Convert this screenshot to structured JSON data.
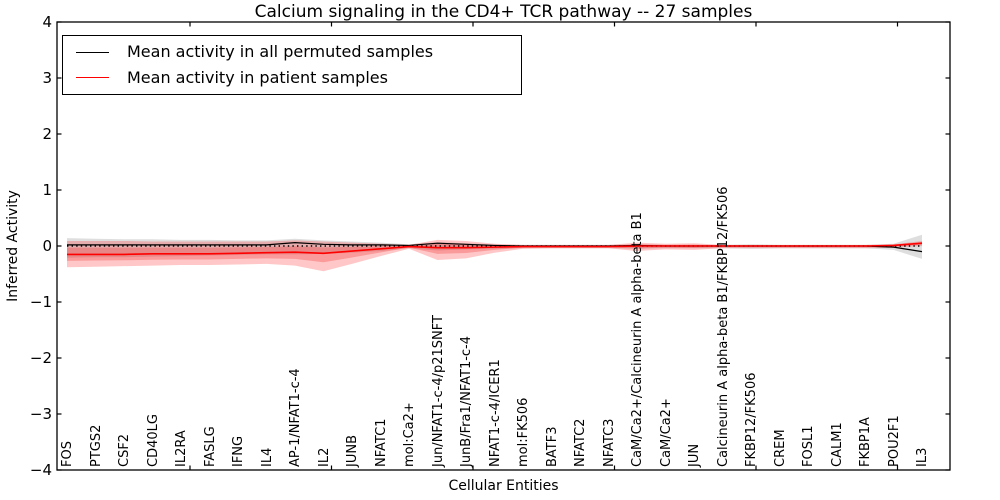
{
  "chart_data": {
    "type": "line",
    "title": "Calcium signaling in the CD4+ TCR pathway -- 27 samples",
    "xlabel": "Cellular Entities",
    "ylabel": "Inferred Activity",
    "ylim": [
      -4,
      4
    ],
    "yticks": [
      4,
      3,
      2,
      1,
      0,
      -1,
      -2,
      -3,
      -4
    ],
    "grid": false,
    "legend_position": "upper left",
    "zero_reference_line": true,
    "categories": [
      "FOS",
      "PTGS2",
      "CSF2",
      "CD40LG",
      "IL2RA",
      "FASLG",
      "IFNG",
      "IL4",
      "AP-1/NFAT1-c-4",
      "IL2",
      "JUNB",
      "NFATC1",
      "mol:Ca2+",
      "Jun/NFAT1-c-4/p21SNFT",
      "JunB/Fra1/NFAT1-c-4",
      "NFAT1-c-4/ICER1",
      "mol:FK506",
      "BATF3",
      "NFATC2",
      "NFATC3",
      "CaM/Ca2+/Calcineurin A alpha-beta B1",
      "CaM/Ca2+",
      "JUN",
      "Calcineurin A alpha-beta B1/FKBP12/FK506",
      "FKBP12/FK506",
      "CREM",
      "FOSL1",
      "CALM1",
      "FKBP1A",
      "POU2F1",
      "IL3"
    ],
    "series": [
      {
        "name": "Mean activity in all permuted samples",
        "color": "#000000",
        "values": [
          0.02,
          0.02,
          0.02,
          0.02,
          0.02,
          0.02,
          0.02,
          0.02,
          0.06,
          0.03,
          0.02,
          0.02,
          0.01,
          0.05,
          0.03,
          0.01,
          0.0,
          0.0,
          0.0,
          0.0,
          0.01,
          0.0,
          0.0,
          0.0,
          0.0,
          0.0,
          0.0,
          0.0,
          0.0,
          -0.02,
          -0.1
        ]
      },
      {
        "name": "Mean activity in patient samples",
        "color": "#ff0000",
        "values": [
          -0.15,
          -0.15,
          -0.15,
          -0.14,
          -0.14,
          -0.14,
          -0.13,
          -0.12,
          -0.11,
          -0.13,
          -0.09,
          -0.05,
          -0.01,
          -0.03,
          -0.03,
          -0.02,
          -0.01,
          -0.01,
          -0.01,
          -0.01,
          0.0,
          0.0,
          0.0,
          0.0,
          0.0,
          0.0,
          0.0,
          0.0,
          0.0,
          0.01,
          0.05
        ]
      }
    ],
    "bands": [
      {
        "name": "permuted-samples-range",
        "color": "#000000",
        "opacity": 0.13,
        "top": [
          0.14,
          0.13,
          0.12,
          0.12,
          0.11,
          0.11,
          0.1,
          0.1,
          0.13,
          0.1,
          0.08,
          0.06,
          0.03,
          0.07,
          0.05,
          0.03,
          0.02,
          0.02,
          0.02,
          0.02,
          0.03,
          0.02,
          0.02,
          0.02,
          0.03,
          0.02,
          0.02,
          0.02,
          0.02,
          0.04,
          0.2
        ],
        "bottom": [
          -0.21,
          -0.2,
          -0.2,
          -0.19,
          -0.18,
          -0.17,
          -0.16,
          -0.15,
          -0.15,
          -0.14,
          -0.12,
          -0.09,
          -0.04,
          -0.08,
          -0.06,
          -0.05,
          -0.04,
          -0.04,
          -0.04,
          -0.04,
          -0.05,
          -0.04,
          -0.04,
          -0.04,
          -0.05,
          -0.04,
          -0.04,
          -0.04,
          -0.04,
          -0.07,
          -0.23
        ]
      },
      {
        "name": "patient-samples-range",
        "color": "#ff0000",
        "opacity": 0.22,
        "top": [
          0.09,
          0.09,
          0.09,
          0.08,
          0.08,
          0.08,
          0.08,
          0.08,
          0.1,
          0.08,
          0.06,
          0.04,
          0.02,
          0.11,
          0.09,
          0.04,
          0.02,
          0.02,
          0.02,
          0.02,
          0.06,
          0.04,
          0.05,
          0.02,
          0.02,
          0.02,
          0.02,
          0.02,
          0.02,
          0.03,
          0.09
        ],
        "bottom": [
          -0.38,
          -0.37,
          -0.36,
          -0.35,
          -0.34,
          -0.34,
          -0.33,
          -0.32,
          -0.35,
          -0.45,
          -0.32,
          -0.18,
          -0.05,
          -0.25,
          -0.22,
          -0.12,
          -0.05,
          -0.04,
          -0.04,
          -0.04,
          -0.09,
          -0.06,
          -0.07,
          -0.04,
          -0.04,
          -0.04,
          -0.04,
          -0.04,
          -0.04,
          -0.03,
          0.0
        ]
      }
    ]
  }
}
